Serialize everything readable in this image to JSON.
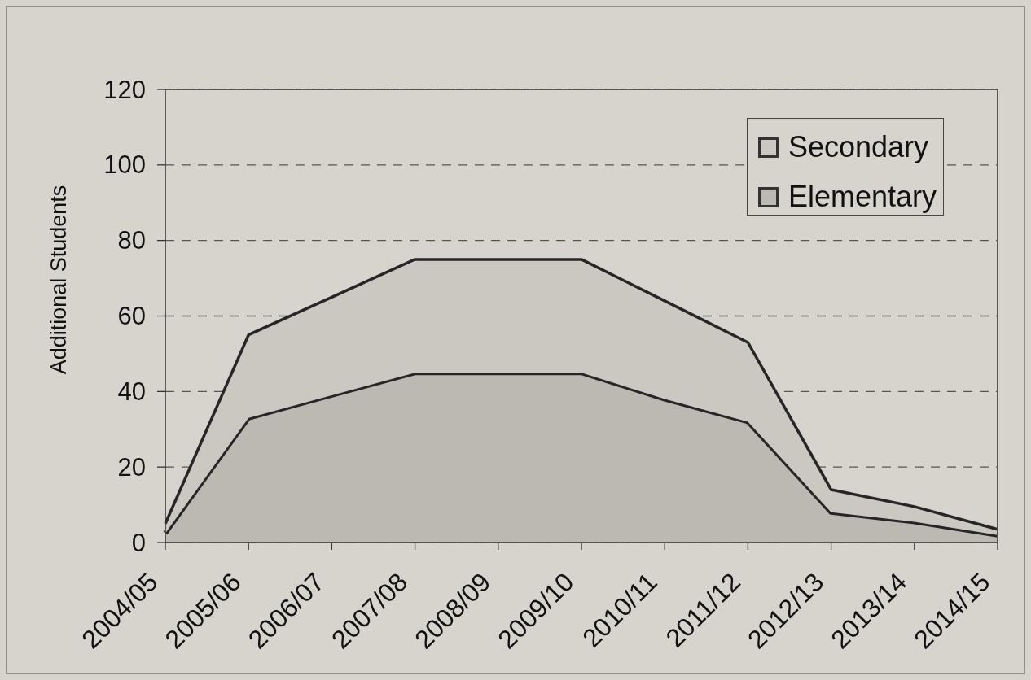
{
  "chart_data": {
    "type": "area",
    "stacked": true,
    "ylabel": "Additional Students",
    "categories": [
      "2004/05",
      "2005/06",
      "2006/07",
      "2007/08",
      "2008/09",
      "2009/10",
      "2010/11",
      "2011/12",
      "2012/13",
      "2013/14",
      "2014/15"
    ],
    "series": [
      {
        "name": "Elementary",
        "color": "#bcb9b3",
        "values": [
          2.5,
          33,
          39,
          45,
          45,
          45,
          38,
          32,
          8,
          5.5,
          2
        ]
      },
      {
        "name": "Secondary",
        "color": "#cbc8c2",
        "values": [
          2.5,
          22,
          26,
          30,
          30,
          30,
          26,
          21,
          6,
          4,
          1.5
        ]
      }
    ],
    "ylim": [
      0,
      120
    ],
    "yticks": [
      0,
      20,
      40,
      60,
      80,
      100,
      120
    ],
    "grid": "y",
    "legend": "top right"
  }
}
